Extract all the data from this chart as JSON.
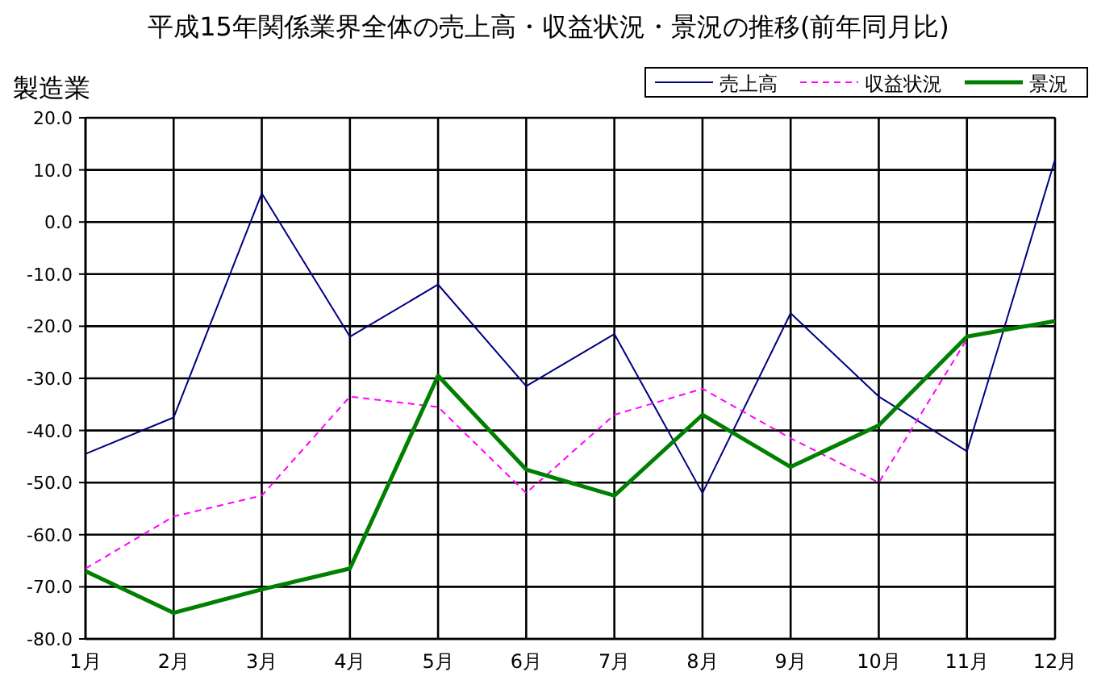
{
  "chart_data": {
    "type": "line",
    "title": "平成15年関係業界全体の売上高・収益状況・景況の推移(前年同月比)",
    "ylabel": "製造業",
    "categories": [
      "1月",
      "2月",
      "3月",
      "4月",
      "5月",
      "6月",
      "7月",
      "8月",
      "9月",
      "10月",
      "11月",
      "12月"
    ],
    "series": [
      {
        "name": "売上高",
        "color": "#000080",
        "line_style": "solid",
        "values": [
          -44.5,
          -37.5,
          5.5,
          -22,
          -12,
          -31.5,
          -21.5,
          -52,
          -17.5,
          -33.5,
          -44,
          12
        ]
      },
      {
        "name": "収益状況",
        "color": "#ff00ff",
        "line_style": "dashed",
        "values": [
          -66.5,
          -56.5,
          -52.5,
          -33.5,
          -35.5,
          -52,
          -37,
          -32,
          -41.5,
          -50,
          -22.5,
          null
        ]
      },
      {
        "name": "景況",
        "color": "#008000",
        "line_style": "solid",
        "values": [
          -67,
          -75,
          -70.5,
          -66.5,
          -29.5,
          -47.5,
          -52.5,
          -37,
          -47,
          -39,
          -22,
          -19
        ]
      }
    ],
    "ylim": [
      -80,
      20
    ],
    "yticks": [
      {
        "value": -80,
        "label": "-80.0"
      },
      {
        "value": -70,
        "label": "-70.0"
      },
      {
        "value": -60,
        "label": "-60.0"
      },
      {
        "value": -50,
        "label": "-50.0"
      },
      {
        "value": -40,
        "label": "-40.0"
      },
      {
        "value": -30,
        "label": "-30.0"
      },
      {
        "value": -20,
        "label": "-20.0"
      },
      {
        "value": -10,
        "label": "-10.0"
      },
      {
        "value": 0,
        "label": "0.0"
      },
      {
        "value": 10,
        "label": "10.0"
      },
      {
        "value": 20,
        "label": "20.0"
      }
    ],
    "grid": true,
    "legend": "top right",
    "marker": "none"
  }
}
